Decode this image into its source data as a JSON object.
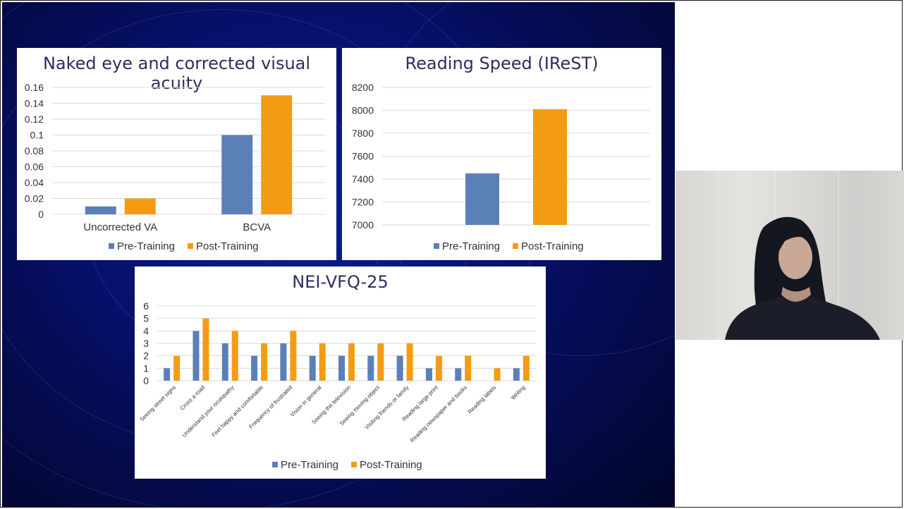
{
  "colors": {
    "pre": "#5b80b7",
    "post": "#f39c12",
    "grid": "#d9d9d9",
    "title": "#2a2f5e"
  },
  "legend": {
    "pre": "Pre-Training",
    "post": "Post-Training"
  },
  "video": {
    "icon": "participant-video-feed"
  },
  "chart_data": [
    {
      "type": "bar",
      "title": "Naked eye and corrected visual acuity",
      "categories": [
        "Uncorrected VA",
        "BCVA"
      ],
      "series": [
        {
          "name": "Pre-Training",
          "values": [
            0.01,
            0.1
          ]
        },
        {
          "name": "Post-Training",
          "values": [
            0.02,
            0.15
          ]
        }
      ],
      "ylim": [
        0,
        0.16
      ],
      "yticks": [
        "0",
        "0.02",
        "0.04",
        "0.06",
        "0.08",
        "0.1",
        "0.12",
        "0.14",
        "0.16"
      ],
      "legend": "bottom",
      "grid": true
    },
    {
      "type": "bar",
      "title": "Reading Speed (IReST)",
      "categories": [
        ""
      ],
      "series": [
        {
          "name": "Pre-Training",
          "values": [
            7450
          ]
        },
        {
          "name": "Post-Training",
          "values": [
            8010
          ]
        }
      ],
      "ylim": [
        7000,
        8200
      ],
      "yticks": [
        "7000",
        "7200",
        "7400",
        "7600",
        "7800",
        "8000",
        "8200"
      ],
      "legend": "bottom",
      "grid": true
    },
    {
      "type": "bar",
      "title": "NEI-VFQ-25",
      "categories": [
        "Seeing street signs",
        "Cross a road",
        "Understand your oculopathy",
        "Feel happy and comfortable",
        "Frequency of frustrated",
        "Vision in general",
        "Seeing the television",
        "Seeing moving object",
        "Visiting friends or family",
        "Reading large print",
        "Reading newspaper and books",
        "Reading  labels",
        "Writing"
      ],
      "series": [
        {
          "name": "Pre-Training",
          "values": [
            1,
            4,
            3,
            2,
            3,
            2,
            2,
            2,
            2,
            1,
            1,
            0,
            1
          ]
        },
        {
          "name": "Post-Training",
          "values": [
            2,
            5,
            4,
            3,
            4,
            3,
            3,
            3,
            3,
            2,
            2,
            1,
            2
          ]
        }
      ],
      "ylim": [
        0,
        6
      ],
      "yticks": [
        "0",
        "1",
        "2",
        "3",
        "4",
        "5",
        "6"
      ],
      "legend": "bottom",
      "grid": true
    }
  ]
}
